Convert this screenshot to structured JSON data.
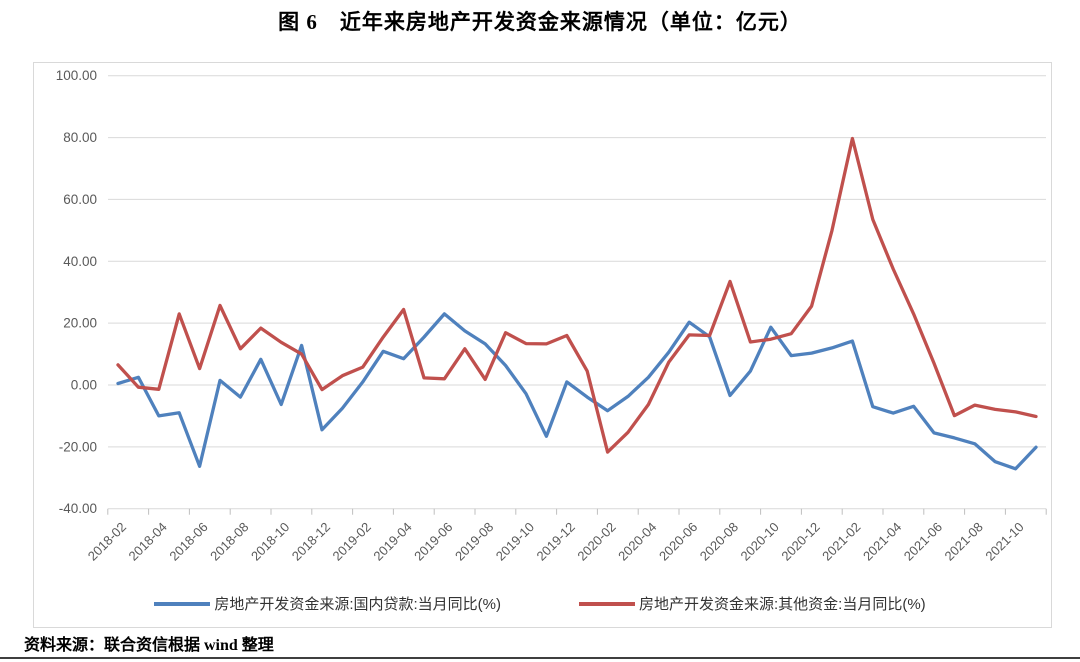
{
  "title": "图 6　近年来房地产开发资金来源情况（单位：亿元）",
  "source_note": "资料来源：联合资信根据 wind 整理",
  "colors": {
    "series_blue": "#4F81BD",
    "series_red": "#C0504D",
    "grid": "#D9D9D9",
    "chart_border": "#D9D9D9",
    "axis_text": "#595959",
    "tick": "#BFBFBF"
  },
  "chart_data": {
    "type": "line",
    "title": "图 6　近年来房地产开发资金来源情况（单位：亿元）",
    "categories": [
      "2018-02",
      "2018-03",
      "2018-04",
      "2018-05",
      "2018-06",
      "2018-07",
      "2018-08",
      "2018-09",
      "2018-10",
      "2018-11",
      "2018-12",
      "2019-01",
      "2019-02",
      "2019-03",
      "2019-04",
      "2019-05",
      "2019-06",
      "2019-07",
      "2019-08",
      "2019-09",
      "2019-10",
      "2019-11",
      "2019-12",
      "2020-01",
      "2020-02",
      "2020-03",
      "2020-04",
      "2020-05",
      "2020-06",
      "2020-07",
      "2020-08",
      "2020-09",
      "2020-10",
      "2020-11",
      "2020-12",
      "2021-01",
      "2021-02",
      "2021-03",
      "2021-04",
      "2021-05",
      "2021-06",
      "2021-07",
      "2021-08",
      "2021-09",
      "2021-10",
      "2021-11"
    ],
    "x_label_every": 2,
    "series": [
      {
        "name": "房地产开发资金来源:国内贷款:当月同比(%)",
        "color": "#4F81BD",
        "values": [
          0.5,
          2.5,
          -10.0,
          -9.0,
          -26.3,
          1.5,
          -3.9,
          8.3,
          -6.3,
          12.8,
          -14.5,
          -7.5,
          1.0,
          10.9,
          8.5,
          15.5,
          23.0,
          17.5,
          13.3,
          6.3,
          -2.8,
          -16.6,
          1.0,
          -3.9,
          -8.3,
          -3.7,
          2.5,
          10.6,
          20.3,
          15.6,
          -3.4,
          4.5,
          18.7,
          9.5,
          10.3,
          12.0,
          14.2,
          -7.0,
          -9.1,
          -6.9,
          -15.5,
          -17.1,
          -19.0,
          -24.8,
          -27.1,
          -20.1
        ]
      },
      {
        "name": "房地产开发资金来源:其他资金:当月同比(%)",
        "color": "#C0504D",
        "values": [
          6.5,
          -0.7,
          -1.4,
          23.0,
          5.3,
          25.7,
          11.7,
          18.4,
          13.8,
          10.0,
          -1.5,
          3.0,
          5.8,
          15.5,
          24.4,
          2.3,
          2.0,
          11.7,
          1.8,
          16.9,
          13.4,
          13.3,
          16.0,
          4.5,
          -21.7,
          -15.3,
          -6.3,
          7.4,
          16.2,
          16.0,
          33.5,
          13.9,
          14.8,
          16.6,
          25.5,
          50.0,
          79.7,
          53.5,
          37.5,
          23.0,
          7.0,
          -9.9,
          -6.5,
          -7.9,
          -8.7,
          -10.2
        ]
      }
    ],
    "ylim": [
      -40,
      100
    ],
    "ytick_step": 20,
    "ytick_format_decimals": 2,
    "grid": true,
    "legend_position": "bottom"
  }
}
